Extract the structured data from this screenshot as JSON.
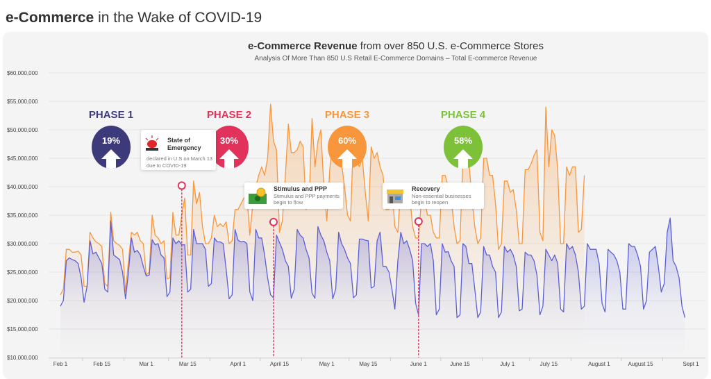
{
  "page_title": {
    "bold": "e-Commerce",
    "rest": " in the Wake of COVID-19"
  },
  "chart_data": {
    "type": "area",
    "title": {
      "bold": "e-Commerce Revenue",
      "rest": " from over 850 U.S. e-Commerce Stores"
    },
    "subtitle": "Analysis Of More Than 850 U.S Retail E-Commerce Domains – Total E-commerce Revenue",
    "x_start": "2020-02-01",
    "x_ticks": [
      {
        "label": "Feb 1",
        "date": "2020-02-01"
      },
      {
        "label": "Feb 15",
        "date": "2020-02-15"
      },
      {
        "label": "Mar 1",
        "date": "2020-03-01"
      },
      {
        "label": "Mar 15",
        "date": "2020-03-15"
      },
      {
        "label": "April 1",
        "date": "2020-04-01"
      },
      {
        "label": "April 15",
        "date": "2020-04-15"
      },
      {
        "label": "May 1",
        "date": "2020-05-01"
      },
      {
        "label": "May 15",
        "date": "2020-05-15"
      },
      {
        "label": "June 1",
        "date": "2020-06-01"
      },
      {
        "label": "June 15",
        "date": "2020-06-15"
      },
      {
        "label": "July 1",
        "date": "2020-07-01"
      },
      {
        "label": "July 15",
        "date": "2020-07-15"
      },
      {
        "label": "August 1",
        "date": "2020-08-01"
      },
      {
        "label": "August 15",
        "date": "2020-08-15"
      },
      {
        "label": "Sept 1",
        "date": "2020-09-01"
      }
    ],
    "y_ticks": [
      "$10,000,000",
      "$15,000,000",
      "$20,000,000",
      "$25,000,000",
      "$30,000,000",
      "$35,000,000",
      "$40,000,000",
      "$45,000,000",
      "$50,000,000",
      "$55,000,000",
      "$60,000,000"
    ],
    "ylim": [
      10000000,
      60000000
    ],
    "y_unit_values": "millions USD, daily",
    "grid": true,
    "series": [
      {
        "color": "#f7963a",
        "fill": "#f9d9bd",
        "values": [
          21,
          22,
          29,
          29,
          28.5,
          28.5,
          28.7,
          28,
          22.5,
          22.5,
          32,
          31,
          30.3,
          30,
          29.5,
          23,
          22.5,
          35.5,
          30.5,
          30,
          29.7,
          29,
          21.5,
          27,
          32,
          31.5,
          32,
          30.5,
          30,
          24.5,
          25,
          35,
          31.5,
          31,
          30,
          30.5,
          23.8,
          24,
          35.5,
          31.5,
          31.5,
          35,
          38,
          28,
          28,
          41,
          37,
          39,
          33,
          30,
          30,
          31,
          35,
          33,
          33.5,
          33,
          33.8,
          30,
          30.5,
          36,
          36,
          37,
          38,
          38.5,
          31.5,
          37,
          40,
          42,
          43.5,
          42,
          45,
          54.5,
          48,
          46.5,
          32,
          34,
          42,
          51,
          46,
          46,
          46.5,
          48,
          47,
          36,
          37,
          52,
          43.5,
          48,
          50,
          40,
          34,
          43,
          48,
          46,
          44,
          44,
          40,
          35,
          34,
          48.7,
          45,
          43.5,
          45,
          39,
          34,
          47,
          45,
          46,
          43.5,
          42,
          36,
          36,
          40,
          33,
          32,
          40,
          37,
          39,
          38.5,
          33,
          31,
          31,
          38,
          38,
          35,
          35,
          32,
          31,
          31,
          42,
          42,
          40,
          38,
          33,
          30,
          30.5,
          45,
          45.2,
          44.5,
          38,
          33,
          30,
          31,
          45,
          45,
          42,
          42,
          37,
          29,
          30,
          41,
          41,
          39,
          39.5,
          36,
          30,
          30,
          43,
          43,
          44,
          45.5,
          46.5,
          32,
          30.5,
          54,
          43.5,
          50,
          49,
          43,
          30,
          30,
          43.5,
          42,
          43.5,
          43.5,
          32,
          32.5,
          42
        ]
      },
      {
        "color": "#5b5fd6",
        "fill": "#c9cbee",
        "values": [
          19,
          20,
          27,
          27.5,
          27.2,
          27,
          26.5,
          24,
          19.7,
          22.5,
          30.5,
          28.2,
          28.5,
          27.5,
          26.5,
          22,
          21.5,
          34,
          28,
          27.6,
          27.2,
          25,
          20.3,
          25,
          31,
          28.5,
          28.8,
          28,
          26,
          24.3,
          24.5,
          30.7,
          29.8,
          30,
          28,
          27.5,
          20.7,
          21.5,
          31,
          30,
          30.5,
          29.8,
          29.8,
          21.5,
          22,
          32.5,
          30,
          30,
          30,
          29,
          22.5,
          23,
          31,
          30.3,
          30.3,
          30,
          25.5,
          20.3,
          21,
          32.5,
          30.6,
          30.3,
          30.4,
          30,
          21.5,
          20,
          32.5,
          31,
          31,
          28,
          24,
          21,
          20.5,
          31.5,
          30.2,
          29,
          27,
          26,
          20.4,
          22,
          32.5,
          31.5,
          31,
          29,
          27.5,
          21.3,
          20.4,
          33,
          31.5,
          30.5,
          28.5,
          27,
          20.3,
          22,
          32,
          30,
          29,
          27.5,
          26.5,
          20.5,
          21,
          30.8,
          30.8,
          30.6,
          30.5,
          22.2,
          22.5,
          30.5,
          32,
          26,
          26,
          25,
          22,
          18.5,
          27,
          32,
          30,
          30.5,
          29,
          27,
          19.5,
          17.5,
          30,
          30,
          29.5,
          30,
          27,
          17.5,
          18.5,
          30,
          28.5,
          28.6,
          27,
          26,
          17,
          17.5,
          30,
          29.5,
          26.5,
          26.5,
          22,
          17,
          18,
          29.5,
          28,
          28,
          26,
          25,
          17,
          18,
          29.5,
          28.5,
          29,
          28,
          26,
          18.2,
          18.5,
          28.5,
          28,
          28,
          27,
          24.5,
          17.5,
          19,
          29,
          28,
          27,
          28,
          26.5,
          18.5,
          18,
          30,
          29,
          29.5,
          28,
          25,
          18.5,
          19,
          30,
          29,
          29,
          29,
          26.5,
          19.5,
          18,
          29,
          28.5,
          28,
          27,
          25,
          18.5,
          18.5,
          30,
          29.5,
          29.5,
          28,
          26,
          18.5,
          20,
          28.5,
          29,
          29.5,
          26,
          21.5,
          23,
          32,
          34.5,
          27,
          26,
          24,
          19,
          17
        ]
      }
    ],
    "events": [
      {
        "date": "2020-03-13",
        "value": 40.2,
        "title": "State of Emergency",
        "text": "declared in U.S on March 13 due to COVID-19",
        "icon": "siren-icon"
      },
      {
        "date": "2020-04-13",
        "value": 33.8,
        "title": "Stimulus and PPP",
        "text": "Stimulus and PPP payments begin to flow",
        "icon": "money-icon"
      },
      {
        "date": "2020-06-01",
        "value": 33.9,
        "title": "Recovery",
        "text": "Non-essential businesses begin to reopen",
        "icon": "storefront-icon"
      }
    ],
    "event_color": "#e0325a",
    "phases": [
      {
        "label": "PHASE 1",
        "pct": "19%",
        "color": "#3d3a7c"
      },
      {
        "label": "PHASE 2",
        "pct": "30%",
        "color": "#e0325a"
      },
      {
        "label": "PHASE 3",
        "pct": "60%",
        "color": "#f7963a"
      },
      {
        "label": "PHASE 4",
        "pct": "58%",
        "color": "#7cc137"
      }
    ]
  }
}
